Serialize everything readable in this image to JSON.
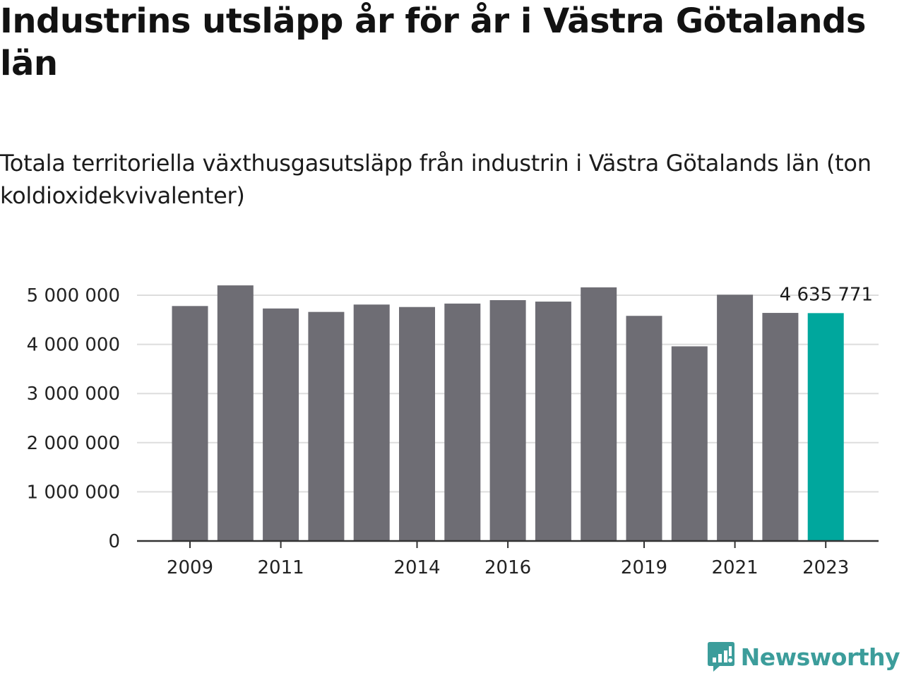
{
  "title": "Industrins utsläpp år för år i Västra Götalands län",
  "subtitle": "Totala territoriella växthusgasutsläpp från industrin i Västra Götalands län (ton koldioxidekvivalenter)",
  "brand": {
    "name": "Newsworthy",
    "icon": "newsworthy-logo-icon",
    "color": "#3c9d9b"
  },
  "colors": {
    "bar": "#6e6d74",
    "highlight": "#00a79d",
    "grid": "#dddddd",
    "axis": "#333333",
    "text": "#222222"
  },
  "chart_data": {
    "type": "bar",
    "categories": [
      "2009",
      "2010",
      "2011",
      "2012",
      "2013",
      "2014",
      "2015",
      "2016",
      "2017",
      "2018",
      "2019",
      "2020",
      "2021",
      "2022",
      "2023"
    ],
    "x_tick_labels": [
      "2009",
      "2011",
      "2014",
      "2016",
      "2019",
      "2021",
      "2023"
    ],
    "values": [
      4780000,
      5200000,
      4730000,
      4660000,
      4810000,
      4760000,
      4830000,
      4900000,
      4870000,
      5160000,
      4580000,
      3960000,
      5010000,
      4640000,
      4635771
    ],
    "highlight_index": 14,
    "data_labels": [
      {
        "index": 14,
        "text": "4 635 771"
      }
    ],
    "y_ticks": [
      0,
      1000000,
      2000000,
      3000000,
      4000000,
      5000000
    ],
    "y_tick_labels": [
      "0",
      "1 000 000",
      "2 000 000",
      "3 000 000",
      "4 000 000",
      "5 000 000"
    ],
    "ylim": [
      0,
      5000000
    ],
    "grid": true,
    "legend": false
  }
}
